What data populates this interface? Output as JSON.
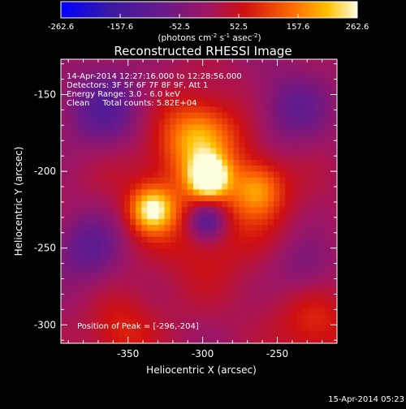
{
  "colorbar": {
    "ticks": [
      "-262.6",
      "-157.6",
      "-52.5",
      "52.5",
      "157.6",
      "262.6"
    ],
    "tick_values": [
      -262.6,
      -157.6,
      -52.5,
      52.5,
      157.6,
      262.6
    ],
    "range": [
      -262.6,
      262.6
    ],
    "units_text": "(photons cm",
    "units_sup1": "-2",
    "units_mid": " s",
    "units_sup2": "-1",
    "units_mid2": " asec",
    "units_sup3": "-2",
    "units_end": ")",
    "palette": [
      "#0000ff",
      "#4a1a8c",
      "#8a1a7a",
      "#c01010",
      "#ff6000",
      "#ffd000",
      "#ffffff"
    ]
  },
  "chart_data": {
    "type": "heatmap",
    "title": "Reconstructed RHESSI Image",
    "xlabel": "Heliocentric X (arcsec)",
    "ylabel": "Heliocentric Y (arcsec)",
    "xlim": [
      -395,
      -210
    ],
    "ylim": [
      -312,
      -127
    ],
    "x_ticks": [
      -350,
      -300,
      -250
    ],
    "y_ticks": [
      -150,
      -200,
      -250,
      -300
    ],
    "x_tick_labels": [
      "-350",
      "-300",
      "-250"
    ],
    "y_tick_labels": [
      "-150",
      "-200",
      "-250",
      "-300"
    ],
    "info_lines": [
      "14-Apr-2014 12:27:16.000 to 12:28:56.000",
      "Detectors: 3F 5F 6F 7F 8F 9F, Att 1",
      "Energy Range: 3.0 - 6.0 keV",
      "Clean     Total counts: 5.82E+04"
    ],
    "peak_text": "Position of Peak = [-296,-204]",
    "peak": [
      -296,
      -204
    ],
    "peak_value": 262.6,
    "sources": [
      {
        "x": -296,
        "y": -204,
        "sigma": 9,
        "amp": 262
      },
      {
        "x": -334,
        "y": -225,
        "sigma": 10,
        "amp": 205
      },
      {
        "x": -303,
        "y": -178,
        "sigma": 16,
        "amp": 150
      },
      {
        "x": -263,
        "y": -212,
        "sigma": 12,
        "amp": 130
      },
      {
        "x": -300,
        "y": -215,
        "sigma": 40,
        "amp": 95
      },
      {
        "x": -297,
        "y": -232,
        "sigma": 9,
        "amp": -170
      },
      {
        "x": -365,
        "y": -160,
        "sigma": 18,
        "amp": -120
      },
      {
        "x": -375,
        "y": -250,
        "sigma": 16,
        "amp": -110
      },
      {
        "x": -240,
        "y": -160,
        "sigma": 18,
        "amp": -95
      },
      {
        "x": -225,
        "y": -300,
        "sigma": 18,
        "amp": 85
      },
      {
        "x": -355,
        "y": -305,
        "sigma": 16,
        "amp": 80
      },
      {
        "x": -232,
        "y": -262,
        "sigma": 14,
        "amp": -70
      }
    ]
  },
  "timestamp": "15-Apr-2014 05:23"
}
